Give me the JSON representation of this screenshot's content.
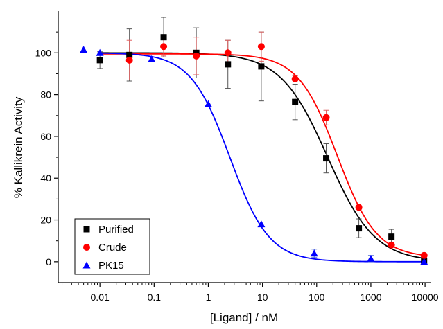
{
  "chart_data": {
    "type": "scatter",
    "xscale": "log",
    "xlabel": "[Ligand] / nM",
    "ylabel": "% Kallikrein Activity",
    "xlim": [
      0.0017,
      13000
    ],
    "ylim": [
      -10,
      120
    ],
    "xticks": [
      0.01,
      0.1,
      1,
      10,
      100,
      1000,
      10000
    ],
    "xtick_labels": [
      "0.01",
      "0.1",
      "1",
      "10",
      "100",
      "1000",
      "10000"
    ],
    "yticks": [
      0,
      20,
      40,
      60,
      80,
      100
    ],
    "ytick_labels": [
      "0",
      "20",
      "40",
      "60",
      "80",
      "100"
    ],
    "grid": false,
    "legend_position": "bottom-left",
    "series": [
      {
        "name": "Purified",
        "marker": "square",
        "color": "#000000",
        "x": [
          0.01,
          0.035,
          0.15,
          0.6,
          2.3,
          9.5,
          40,
          150,
          600,
          2400,
          9600
        ],
        "y": [
          96.5,
          99,
          107.5,
          100,
          94.5,
          93.5,
          76.5,
          49.5,
          16,
          12,
          0.5
        ],
        "error": [
          4,
          12.5,
          9.5,
          12,
          11.5,
          16.5,
          8.5,
          7,
          4.5,
          3.5,
          1
        ],
        "fit": {
          "top": 100,
          "bottom": 0,
          "ic50": 160,
          "hill": 1
        }
      },
      {
        "name": "Crude",
        "marker": "circle",
        "color": "#ff0000",
        "x": [
          0.035,
          0.15,
          0.6,
          2.3,
          9.5,
          40,
          150,
          600,
          2400,
          9600
        ],
        "y": [
          96.5,
          103,
          98.5,
          100,
          103,
          87.5,
          69,
          26,
          8,
          3
        ],
        "error": [
          9.5,
          4.5,
          9,
          6,
          7,
          1.5,
          3.5,
          1,
          1,
          1
        ],
        "fit": {
          "top": 99.5,
          "bottom": 2,
          "ic50": 240,
          "hill": 1.2
        }
      },
      {
        "name": "PK15",
        "marker": "triangle",
        "color": "#0000ff",
        "x": [
          0.005,
          0.01,
          0.09,
          1,
          9.5,
          90,
          1000,
          9600
        ],
        "y": [
          101.5,
          100,
          97,
          75.5,
          18,
          4,
          1.5,
          0
        ],
        "error": [
          0,
          0,
          0,
          0,
          0,
          2,
          1.5,
          0
        ],
        "fit": {
          "top": 100,
          "bottom": 0,
          "ic50": 2.5,
          "hill": 1.2
        }
      }
    ]
  }
}
